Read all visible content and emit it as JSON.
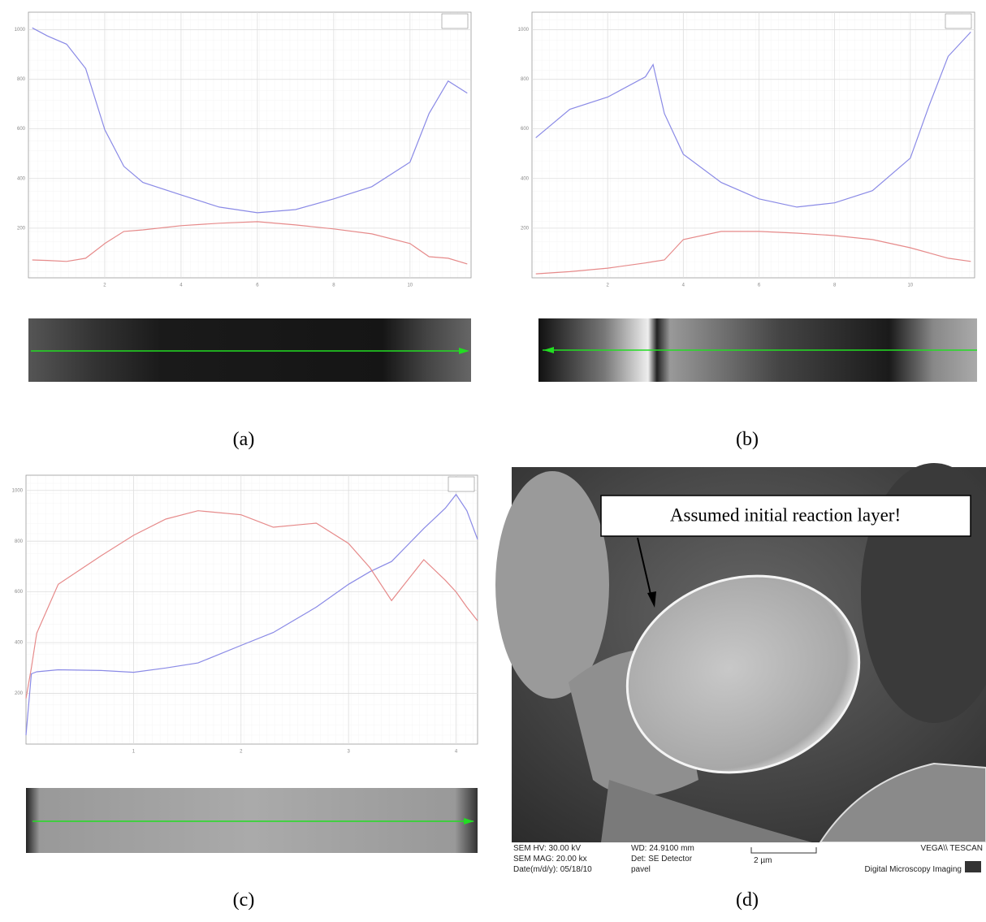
{
  "chart_data": [
    {
      "type": "line",
      "panel": "(a)",
      "x": [
        0.1,
        0.5,
        1,
        1.5,
        2,
        2.5,
        3,
        4,
        5,
        6,
        7,
        8,
        9,
        10,
        10.5,
        11,
        11.5
      ],
      "series": [
        {
          "color": "#8a8ae6",
          "values": [
            1007,
            974,
            941,
            843,
            597,
            449,
            384,
            334,
            285,
            262,
            275,
            318,
            367,
            466,
            662,
            793,
            744
          ]
        },
        {
          "color": "#e68a8a",
          "values": [
            72,
            70,
            66,
            79,
            138,
            187,
            193,
            210,
            220,
            226,
            213,
            197,
            177,
            138,
            85,
            79,
            56
          ]
        }
      ],
      "xlim": [
        0,
        11.6
      ],
      "ylim": [
        0,
        1070
      ],
      "xticks": [
        2,
        4,
        6,
        8,
        10
      ],
      "yticks": [
        200,
        400,
        600,
        800,
        1000
      ],
      "grid": true
    },
    {
      "type": "line",
      "panel": "(b)",
      "x": [
        0.1,
        1,
        2,
        3,
        3.2,
        3.5,
        4,
        5,
        6,
        7,
        8,
        9,
        10,
        10.5,
        11,
        11.6
      ],
      "series": [
        {
          "color": "#8a8ae6",
          "values": [
            564,
            679,
            728,
            810,
            859,
            662,
            498,
            384,
            318,
            285,
            302,
            351,
            482,
            695,
            892,
            990
          ]
        },
        {
          "color": "#e68a8a",
          "values": [
            16,
            25,
            39,
            60,
            65,
            72,
            154,
            187,
            187,
            180,
            170,
            154,
            121,
            100,
            79,
            66
          ]
        }
      ],
      "xlim": [
        0,
        11.7
      ],
      "ylim": [
        0,
        1070
      ],
      "xticks": [
        2,
        4,
        6,
        8,
        10
      ],
      "yticks": [
        200,
        400,
        600,
        800,
        1000
      ],
      "grid": true
    },
    {
      "type": "line",
      "panel": "(c)",
      "x": [
        0,
        0.05,
        0.1,
        0.3,
        0.7,
        1,
        1.3,
        1.6,
        2,
        2.3,
        2.7,
        3,
        3.2,
        3.4,
        3.7,
        3.9,
        4,
        4.1,
        4.2
      ],
      "series": [
        {
          "color": "#8a8ae6",
          "values": [
            35,
            277,
            285,
            293,
            290,
            283,
            300,
            320,
            389,
            440,
            540,
            630,
            680,
            720,
            850,
            930,
            984,
            920,
            807
          ]
        },
        {
          "color": "#e68a8a",
          "values": [
            180,
            300,
            437,
            630,
            743,
            823,
            887,
            920,
            904,
            855,
            871,
            791,
            695,
            566,
            727,
            646,
            600,
            540,
            486
          ]
        }
      ],
      "xlim": [
        0,
        4.2
      ],
      "ylim": [
        0,
        1060
      ],
      "xticks": [
        1,
        2,
        3,
        4
      ],
      "yticks": [
        200,
        400,
        600,
        800,
        1000
      ],
      "grid": true
    }
  ],
  "sem_image": {
    "panel": "(d)",
    "callout": "Assumed initial reaction layer!",
    "info": [
      "SEM HV: 30.00 kV",
      "SEM MAG: 20.00 kx",
      "Date(m/d/y): 05/18/10",
      "WD: 24.9100 mm",
      "Det: SE Detector",
      "pavel",
      "2 µm",
      "VEGA\\\\ TESCAN",
      "Digital Microscopy Imaging"
    ]
  }
}
